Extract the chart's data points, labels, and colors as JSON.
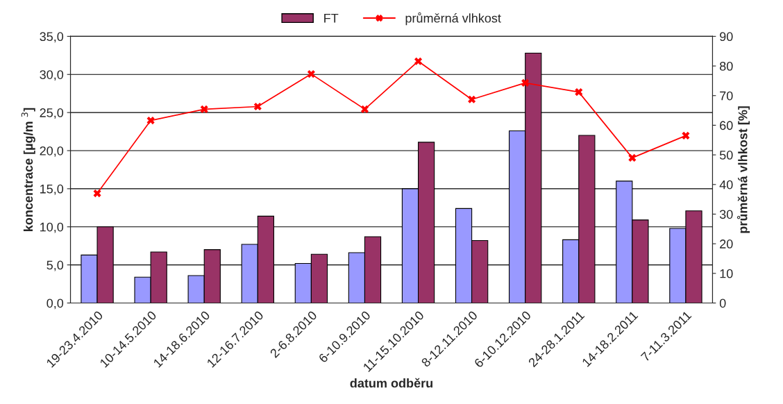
{
  "chart_data": {
    "type": "bar",
    "xlabel": "datum odběru",
    "ylabel": "koncentrace [µg/m $^{3}$]",
    "y2label": "průměrná vlhkost [%]",
    "categories": [
      "19-23.4.2010",
      "10-14.5.2010",
      "14-18.6.2010",
      "12-16.7.2010",
      "2-6.8.2010",
      "6-10.9.2010",
      "11-15.10.2010",
      "8-12.11.2010",
      "6-10.12.2010",
      "24-28.1.2011",
      "14-18.2.2011",
      "7-11.3.2011"
    ],
    "series": [
      {
        "color": "#9999ff",
        "values": [
          6.3,
          3.4,
          3.6,
          7.7,
          5.2,
          6.6,
          15.0,
          12.4,
          22.6,
          8.3,
          16.0,
          9.8
        ]
      },
      {
        "name": "FT",
        "color": "#993366",
        "values": [
          10.0,
          6.7,
          7.0,
          11.4,
          6.4,
          8.7,
          21.1,
          8.2,
          32.8,
          22.0,
          10.9,
          12.1
        ]
      },
      {
        "name": "průměrná vlhkost",
        "type": "line",
        "axis": "y2",
        "color": "#ff0000",
        "marker": "cross",
        "values": [
          37,
          61.6,
          65.4,
          66.3,
          77.3,
          65.4,
          81.6,
          68.7,
          74.3,
          71.2,
          49,
          56.5
        ]
      }
    ],
    "ylim": [
      0,
      35
    ],
    "yticks": [
      {
        "value": 0,
        "label": "0,0"
      },
      {
        "value": 5,
        "label": "5,0"
      },
      {
        "value": 10,
        "label": "10,0"
      },
      {
        "value": 15,
        "label": "15,0"
      },
      {
        "value": 20,
        "label": "20,0"
      },
      {
        "value": 25,
        "label": "25,0"
      },
      {
        "value": 30,
        "label": "30,0"
      },
      {
        "value": 35,
        "label": "35,0"
      }
    ],
    "y2lim": [
      0,
      90
    ],
    "y2ticks": [
      0,
      10,
      20,
      30,
      40,
      50,
      60,
      70,
      80,
      90
    ],
    "grid": "y",
    "legend": "top"
  }
}
